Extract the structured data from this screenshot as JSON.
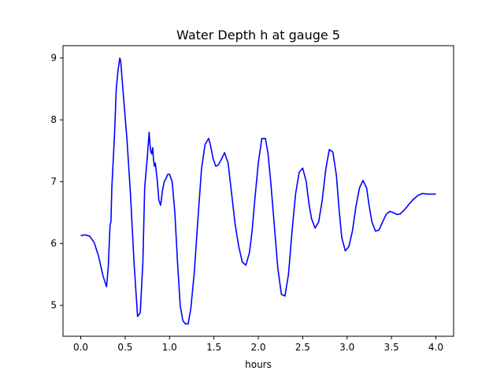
{
  "chart_data": {
    "type": "line",
    "title": "Water Depth h at gauge 5",
    "xlabel": "hours",
    "ylabel": "",
    "xlim": [
      -0.2,
      4.2
    ],
    "ylim": [
      4.5,
      9.2
    ],
    "x_ticks": [
      0.0,
      0.5,
      1.0,
      1.5,
      2.0,
      2.5,
      3.0,
      3.5,
      4.0
    ],
    "x_tick_labels": [
      "0.0",
      "0.5",
      "1.0",
      "1.5",
      "2.0",
      "2.5",
      "3.0",
      "3.5",
      "4.0"
    ],
    "y_ticks": [
      5,
      6,
      7,
      8,
      9
    ],
    "y_tick_labels": [
      "5",
      "6",
      "7",
      "8",
      "9"
    ],
    "grid": false,
    "colors": {
      "line": "#0000ff",
      "axes": "#000000",
      "background": "#ffffff"
    },
    "series": [
      {
        "color": "#0000ff",
        "x": [
          0.0,
          0.05,
          0.1,
          0.15,
          0.2,
          0.25,
          0.29,
          0.31,
          0.33,
          0.34,
          0.35,
          0.38,
          0.4,
          0.42,
          0.44,
          0.45,
          0.48,
          0.52,
          0.56,
          0.6,
          0.64,
          0.67,
          0.7,
          0.72,
          0.75,
          0.77,
          0.78,
          0.79,
          0.8,
          0.81,
          0.82,
          0.83,
          0.84,
          0.86,
          0.88,
          0.9,
          0.92,
          0.94,
          0.96,
          0.98,
          1.0,
          1.03,
          1.06,
          1.09,
          1.12,
          1.15,
          1.18,
          1.21,
          1.24,
          1.28,
          1.32,
          1.36,
          1.4,
          1.44,
          1.46,
          1.49,
          1.52,
          1.55,
          1.58,
          1.62,
          1.66,
          1.7,
          1.74,
          1.78,
          1.82,
          1.86,
          1.9,
          1.93,
          1.96,
          2.0,
          2.04,
          2.08,
          2.11,
          2.14,
          2.18,
          2.22,
          2.26,
          2.3,
          2.34,
          2.38,
          2.42,
          2.46,
          2.5,
          2.54,
          2.57,
          2.6,
          2.64,
          2.68,
          2.72,
          2.76,
          2.8,
          2.84,
          2.88,
          2.91,
          2.94,
          2.98,
          3.02,
          3.06,
          3.1,
          3.14,
          3.18,
          3.22,
          3.25,
          3.28,
          3.32,
          3.36,
          3.4,
          3.44,
          3.48,
          3.52,
          3.56,
          3.6,
          3.65,
          3.7,
          3.75,
          3.8,
          3.85,
          3.9,
          3.95,
          4.0
        ],
        "y": [
          6.13,
          6.14,
          6.12,
          6.02,
          5.8,
          5.48,
          5.3,
          5.62,
          6.3,
          6.35,
          6.9,
          7.75,
          8.5,
          8.8,
          9.0,
          8.95,
          8.4,
          7.7,
          6.8,
          5.7,
          4.82,
          4.88,
          5.7,
          6.9,
          7.4,
          7.8,
          7.6,
          7.48,
          7.45,
          7.55,
          7.35,
          7.25,
          7.3,
          7.05,
          6.7,
          6.62,
          6.85,
          7.0,
          7.05,
          7.12,
          7.12,
          7.0,
          6.5,
          5.7,
          5.0,
          4.75,
          4.7,
          4.7,
          4.95,
          5.55,
          6.4,
          7.2,
          7.6,
          7.7,
          7.6,
          7.38,
          7.25,
          7.27,
          7.35,
          7.47,
          7.3,
          6.8,
          6.3,
          5.95,
          5.7,
          5.65,
          5.85,
          6.2,
          6.7,
          7.3,
          7.7,
          7.7,
          7.45,
          7.0,
          6.3,
          5.6,
          5.18,
          5.15,
          5.5,
          6.2,
          6.8,
          7.15,
          7.22,
          7.0,
          6.65,
          6.4,
          6.25,
          6.35,
          6.7,
          7.2,
          7.52,
          7.48,
          7.1,
          6.55,
          6.1,
          5.88,
          5.95,
          6.2,
          6.6,
          6.9,
          7.02,
          6.9,
          6.6,
          6.35,
          6.2,
          6.22,
          6.35,
          6.47,
          6.52,
          6.5,
          6.47,
          6.48,
          6.55,
          6.64,
          6.72,
          6.78,
          6.81,
          6.8,
          6.8,
          6.8
        ]
      }
    ]
  }
}
